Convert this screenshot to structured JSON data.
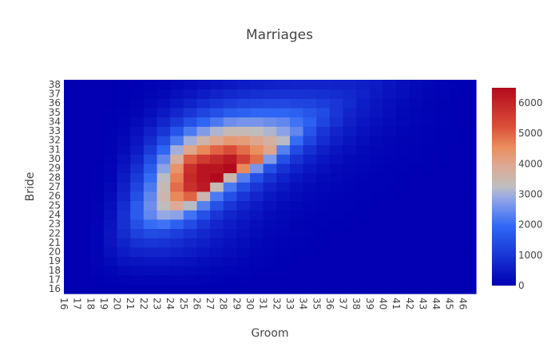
{
  "chart_data": {
    "type": "heatmap",
    "title": "Marriages",
    "xlabel": "Groom",
    "ylabel": "Bride",
    "x": [
      16,
      17,
      18,
      19,
      20,
      21,
      22,
      23,
      24,
      25,
      26,
      27,
      28,
      29,
      30,
      31,
      32,
      33,
      34,
      35,
      36,
      37,
      38,
      39,
      40,
      41,
      42,
      43,
      44,
      45,
      46
    ],
    "y": [
      16,
      17,
      18,
      19,
      20,
      21,
      22,
      23,
      24,
      25,
      26,
      27,
      28,
      29,
      30,
      31,
      32,
      33,
      34,
      35,
      36,
      37,
      38
    ],
    "colorscale": "coolwarm",
    "colorbar": {
      "min": 0,
      "max": 6500,
      "ticks": [
        0,
        1000,
        2000,
        3000,
        4000,
        5000,
        6000
      ]
    },
    "values": [
      [
        0,
        0,
        0,
        0,
        0,
        0,
        0,
        0,
        0,
        0,
        0,
        0,
        0,
        0,
        0,
        0,
        0,
        0,
        0,
        0,
        0,
        0,
        0,
        0,
        0,
        0,
        0,
        0,
        0,
        0,
        0
      ],
      [
        0,
        0,
        20,
        40,
        60,
        80,
        80,
        80,
        80,
        80,
        60,
        40,
        20,
        20,
        0,
        0,
        0,
        0,
        0,
        0,
        0,
        0,
        0,
        0,
        0,
        0,
        0,
        0,
        0,
        0,
        0
      ],
      [
        0,
        0,
        50,
        100,
        180,
        200,
        220,
        220,
        200,
        180,
        160,
        120,
        80,
        50,
        30,
        20,
        10,
        0,
        0,
        0,
        0,
        0,
        0,
        0,
        0,
        0,
        0,
        0,
        0,
        0,
        0
      ],
      [
        0,
        0,
        80,
        200,
        350,
        400,
        420,
        420,
        380,
        320,
        260,
        200,
        150,
        100,
        60,
        40,
        20,
        10,
        0,
        0,
        0,
        0,
        0,
        0,
        0,
        0,
        0,
        0,
        0,
        0,
        0
      ],
      [
        0,
        0,
        100,
        300,
        500,
        650,
        700,
        700,
        620,
        520,
        420,
        320,
        240,
        160,
        100,
        60,
        40,
        20,
        10,
        0,
        0,
        0,
        0,
        0,
        0,
        0,
        0,
        0,
        0,
        0,
        0
      ],
      [
        0,
        0,
        100,
        350,
        650,
        900,
        1000,
        950,
        850,
        700,
        560,
        420,
        320,
        220,
        140,
        80,
        50,
        30,
        20,
        10,
        0,
        0,
        0,
        0,
        0,
        0,
        0,
        0,
        0,
        0,
        0
      ],
      [
        0,
        0,
        100,
        400,
        800,
        1200,
        1400,
        1350,
        1150,
        950,
        750,
        560,
        420,
        300,
        200,
        120,
        80,
        50,
        30,
        20,
        10,
        0,
        0,
        0,
        0,
        0,
        0,
        0,
        0,
        0,
        0
      ],
      [
        0,
        0,
        80,
        350,
        900,
        1500,
        2000,
        2100,
        1800,
        1400,
        1000,
        720,
        520,
        380,
        260,
        170,
        110,
        70,
        40,
        30,
        20,
        10,
        0,
        0,
        0,
        0,
        0,
        0,
        0,
        0,
        0
      ],
      [
        0,
        0,
        60,
        300,
        900,
        1700,
        2400,
        2900,
        2800,
        2100,
        1500,
        1000,
        700,
        500,
        350,
        230,
        150,
        100,
        60,
        40,
        30,
        20,
        10,
        0,
        0,
        0,
        0,
        0,
        0,
        0,
        0
      ],
      [
        0,
        0,
        50,
        250,
        850,
        1700,
        2500,
        3300,
        3900,
        3200,
        2300,
        1500,
        1000,
        700,
        480,
        320,
        210,
        140,
        90,
        60,
        40,
        30,
        20,
        10,
        0,
        0,
        0,
        0,
        0,
        0,
        0
      ],
      [
        0,
        0,
        30,
        200,
        700,
        1500,
        2400,
        3500,
        4600,
        5000,
        3500,
        2200,
        1500,
        1000,
        700,
        450,
        300,
        200,
        130,
        90,
        60,
        40,
        30,
        20,
        10,
        0,
        0,
        0,
        0,
        0,
        0
      ],
      [
        0,
        0,
        20,
        150,
        600,
        1300,
        2200,
        3400,
        4900,
        5800,
        6200,
        3400,
        2200,
        1500,
        1000,
        650,
        430,
        290,
        190,
        130,
        90,
        60,
        40,
        30,
        20,
        10,
        0,
        0,
        0,
        0,
        0
      ],
      [
        0,
        0,
        10,
        100,
        500,
        1100,
        2000,
        3200,
        4700,
        5900,
        6300,
        6500,
        3500,
        2300,
        1500,
        950,
        620,
        420,
        280,
        190,
        130,
        90,
        60,
        40,
        30,
        20,
        10,
        0,
        0,
        0,
        0
      ],
      [
        0,
        0,
        10,
        80,
        400,
        900,
        1700,
        2800,
        4400,
        5800,
        6300,
        6300,
        6500,
        4600,
        2600,
        1500,
        950,
        620,
        420,
        280,
        190,
        130,
        90,
        60,
        40,
        30,
        20,
        10,
        0,
        0,
        0
      ],
      [
        0,
        0,
        0,
        60,
        300,
        700,
        1400,
        2400,
        3700,
        5100,
        5600,
        5900,
        6200,
        5500,
        4900,
        2700,
        1500,
        950,
        620,
        420,
        280,
        190,
        130,
        90,
        60,
        40,
        30,
        20,
        10,
        0,
        0
      ],
      [
        0,
        0,
        0,
        40,
        200,
        500,
        1100,
        1900,
        3000,
        4000,
        4600,
        5000,
        5300,
        4900,
        4500,
        4000,
        2300,
        1400,
        900,
        600,
        400,
        270,
        180,
        120,
        80,
        50,
        30,
        20,
        10,
        0,
        0
      ],
      [
        0,
        0,
        0,
        30,
        150,
        400,
        800,
        1400,
        2200,
        3000,
        3600,
        4000,
        4300,
        4200,
        4000,
        3700,
        3200,
        2000,
        1300,
        850,
        560,
        370,
        250,
        170,
        110,
        70,
        50,
        30,
        20,
        10,
        0
      ],
      [
        0,
        0,
        0,
        20,
        100,
        300,
        600,
        1000,
        1600,
        2200,
        2700,
        3100,
        3400,
        3400,
        3300,
        3100,
        2800,
        2400,
        1600,
        1000,
        700,
        480,
        320,
        220,
        150,
        100,
        60,
        40,
        20,
        10,
        0
      ],
      [
        0,
        0,
        0,
        10,
        60,
        200,
        400,
        700,
        1100,
        1500,
        1900,
        2200,
        2500,
        2600,
        2600,
        2500,
        2400,
        2100,
        1800,
        1300,
        900,
        600,
        420,
        290,
        200,
        130,
        80,
        50,
        30,
        10,
        0
      ],
      [
        0,
        0,
        0,
        10,
        40,
        120,
        260,
        460,
        720,
        1000,
        1300,
        1500,
        1700,
        1800,
        1900,
        1900,
        1900,
        1800,
        1600,
        1400,
        1000,
        700,
        500,
        350,
        240,
        160,
        100,
        60,
        30,
        10,
        0
      ],
      [
        0,
        0,
        0,
        0,
        20,
        70,
        160,
        290,
        460,
        650,
        850,
        1000,
        1150,
        1250,
        1300,
        1350,
        1350,
        1300,
        1250,
        1150,
        1000,
        780,
        560,
        400,
        280,
        190,
        120,
        70,
        40,
        20,
        0
      ],
      [
        0,
        0,
        0,
        0,
        10,
        40,
        90,
        170,
        280,
        400,
        520,
        640,
        740,
        820,
        880,
        920,
        940,
        940,
        920,
        880,
        820,
        740,
        620,
        470,
        340,
        240,
        150,
        90,
        50,
        20,
        0
      ],
      [
        0,
        0,
        0,
        0,
        10,
        20,
        50,
        100,
        160,
        240,
        320,
        400,
        470,
        530,
        580,
        620,
        650,
        670,
        680,
        680,
        660,
        630,
        580,
        500,
        380,
        280,
        180,
        110,
        60,
        30,
        10
      ]
    ]
  }
}
